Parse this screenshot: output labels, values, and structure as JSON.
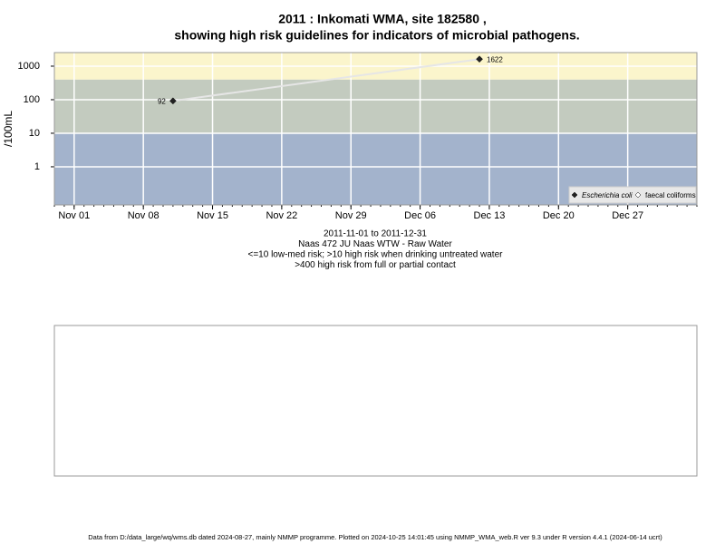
{
  "chart_data": {
    "type": "line",
    "title": "2011 : Inkomati WMA, site 182580 ,",
    "subtitle": "showing high risk guidelines for indicators of microbial pathogens.",
    "ylabel": "/100mL",
    "x": [
      "2011-11-11",
      "2011-12-12"
    ],
    "series": [
      {
        "name": "Escherichia coli",
        "color": "#222222",
        "line_color": "#e6e6e6",
        "values": [
          92,
          1622
        ]
      },
      {
        "name": "faecal coliforms",
        "color": "#ffffff",
        "values": [
          null,
          null
        ]
      }
    ],
    "xlim": [
      "2011-10-30",
      "2012-01-03"
    ],
    "xticks": [
      {
        "value": "2011-11-01",
        "label": "Nov 01"
      },
      {
        "value": "2011-11-08",
        "label": "Nov 08"
      },
      {
        "value": "2011-11-15",
        "label": "Nov 15"
      },
      {
        "value": "2011-11-22",
        "label": "Nov 22"
      },
      {
        "value": "2011-11-29",
        "label": "Nov 29"
      },
      {
        "value": "2011-12-06",
        "label": "Dec 06"
      },
      {
        "value": "2011-12-13",
        "label": "Dec 13"
      },
      {
        "value": "2011-12-20",
        "label": "Dec 20"
      },
      {
        "value": "2011-12-27",
        "label": "Dec 27"
      }
    ],
    "ylim": [
      0.073,
      2540
    ],
    "yticks": [
      1,
      10,
      100,
      1000
    ],
    "log_y": true,
    "grid": true,
    "legend": "bottom-right",
    "thresholds": [
      10,
      400
    ],
    "band_colors": [
      "#a3b3cc",
      "#c3cbbf",
      "#fbf5cc"
    ],
    "notes": [
      "2011-11-01 to 2011-12-31",
      "Naas 472 JU Naas WTW - Raw Water",
      "<=10 low-med risk; >10 high risk when drinking untreated water",
      ">400 high risk from full or partial contact"
    ],
    "footer": "Data from D:/data_large/wq/wms.db dated 2024-08-27, mainly NMMP programme. Plotted on 2024-10-25 14:01:45 using NMMP_WMA_web.R ver 9.3 under R version 4.4.1 (2024-06-14 ucrt)"
  }
}
